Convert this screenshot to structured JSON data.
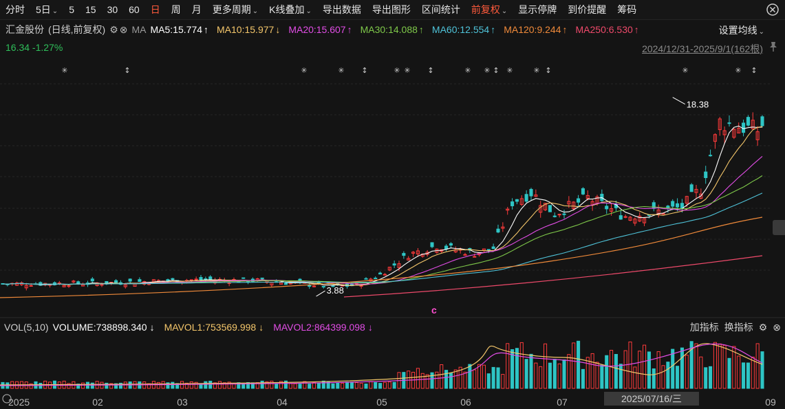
{
  "toolbar": {
    "items": [
      {
        "label": "分时",
        "dropdown": false,
        "active": false
      },
      {
        "label": "5日",
        "dropdown": true,
        "active": false
      },
      {
        "label": "5",
        "dropdown": false,
        "active": false
      },
      {
        "label": "15",
        "dropdown": false,
        "active": false
      },
      {
        "label": "30",
        "dropdown": false,
        "active": false
      },
      {
        "label": "60",
        "dropdown": false,
        "active": false
      },
      {
        "label": "日",
        "dropdown": false,
        "active": true
      },
      {
        "label": "周",
        "dropdown": false,
        "active": false
      },
      {
        "label": "月",
        "dropdown": false,
        "active": false
      },
      {
        "label": "更多周期",
        "dropdown": true,
        "active": false
      },
      {
        "label": "K线叠加",
        "dropdown": true,
        "active": false
      },
      {
        "label": "导出数据",
        "dropdown": false,
        "active": false
      },
      {
        "label": "导出图形",
        "dropdown": false,
        "active": false
      },
      {
        "label": "区间统计",
        "dropdown": false,
        "active": false
      },
      {
        "label": "前复权",
        "dropdown": true,
        "active": true
      },
      {
        "label": "显示停牌",
        "dropdown": false,
        "active": false
      },
      {
        "label": "到价提醒",
        "dropdown": false,
        "active": false
      },
      {
        "label": "筹码",
        "dropdown": false,
        "active": false
      }
    ],
    "close_icon": "close-circle-icon"
  },
  "info": {
    "name": "汇金股份",
    "mode": "(日线,前复权)",
    "ma_label": "MA",
    "ma": [
      {
        "label": "MA5:15.774",
        "arrow": "↑",
        "color": "#ffffff"
      },
      {
        "label": "MA10:15.977",
        "arrow": "↓",
        "color": "#f5c76b"
      },
      {
        "label": "MA20:15.607",
        "arrow": "↑",
        "color": "#e24de6"
      },
      {
        "label": "MA30:14.088",
        "arrow": "↑",
        "color": "#7fc94a"
      },
      {
        "label": "MA60:12.554",
        "arrow": "↑",
        "color": "#4fc3d9"
      },
      {
        "label": "MA120:9.244",
        "arrow": "↑",
        "color": "#f08a3a"
      },
      {
        "label": "MA250:6.530",
        "arrow": "↑",
        "color": "#ef4a6b"
      }
    ],
    "settings": "设置均线",
    "price_line": "16.34 -1.27%",
    "range": "2024/12/31-2025/9/1(162根)"
  },
  "chart_data": {
    "type": "candlestick",
    "high_label": "18.38",
    "low_label": "3.88",
    "marker": "c",
    "x_labels": [
      "2025",
      "02",
      "03",
      "04",
      "05",
      "06",
      "07",
      "09"
    ],
    "ma_series": [
      "MA5",
      "MA10",
      "MA20",
      "MA30",
      "MA60",
      "MA120",
      "MA250"
    ],
    "colors": {
      "up": "#ff3b3b",
      "down": "#2ec5c5",
      "up_fill": "#f5c76b"
    }
  },
  "volume": {
    "title": "VOL(5,10)",
    "items": [
      {
        "label": "VOLUME:738898.340",
        "arrow": "↓",
        "color": "#ffffff"
      },
      {
        "label": "MAVOL1:753569.998",
        "arrow": "↓",
        "color": "#f5c76b"
      },
      {
        "label": "MAVOL2:864399.098",
        "arrow": "↓",
        "color": "#e24de6"
      }
    ],
    "add_indicator": "加指标",
    "switch_indicator": "换指标"
  },
  "cursor_date": "2025/07/16/三"
}
